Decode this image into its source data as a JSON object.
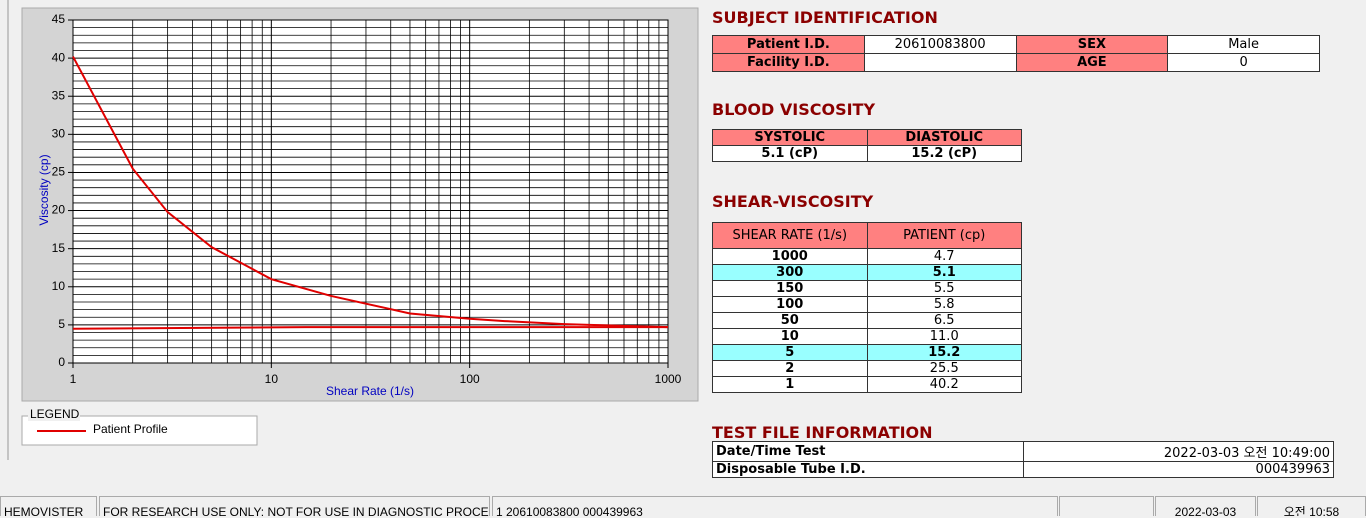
{
  "chart_data": {
    "type": "line",
    "xlabel": "Shear Rate (1/s)",
    "ylabel": "Viscosity (cp)",
    "xscale": "log",
    "xlim": [
      1,
      1000
    ],
    "ylim": [
      0,
      45
    ],
    "xticks": [
      1,
      10,
      100,
      1000
    ],
    "yticks": [
      0,
      5,
      10,
      15,
      20,
      25,
      30,
      35,
      40,
      45
    ],
    "xminorticks": [
      2,
      3,
      4,
      5,
      6,
      7,
      8,
      9,
      20,
      30,
      40,
      50,
      60,
      70,
      80,
      90,
      200,
      300,
      400,
      500,
      600,
      700,
      800,
      900
    ],
    "yminorticks": [
      1,
      2,
      3,
      4,
      6,
      7,
      8,
      9,
      11,
      12,
      13,
      14,
      16,
      17,
      18,
      19,
      21,
      22,
      23,
      24,
      26,
      27,
      28,
      29,
      31,
      32,
      33,
      34,
      36,
      37,
      38,
      39,
      41,
      42,
      43,
      44
    ],
    "grid": true,
    "legend_title": "LEGEND",
    "series": [
      {
        "name": "Patient Profile",
        "color": "#e00000",
        "x": [
          1,
          2,
          3,
          5,
          10,
          20,
          50,
          100,
          150,
          300,
          1000
        ],
        "values": [
          40.2,
          25.5,
          19.8,
          15.2,
          11.0,
          8.8,
          6.5,
          5.8,
          5.5,
          5.1,
          4.7
        ]
      },
      {
        "color": "#e00000",
        "x": [
          1,
          15,
          1000
        ],
        "values": [
          4.5,
          4.7,
          4.7
        ]
      }
    ]
  },
  "subject": {
    "title": "SUBJECT IDENTIFICATION",
    "patient_id_label": "Patient I.D.",
    "patient_id": "20610083800",
    "sex_label": "SEX",
    "sex": "Male",
    "facility_label": "Facility I.D.",
    "age_label": "AGE",
    "age": "0"
  },
  "blood": {
    "title": "BLOOD VISCOSITY",
    "headers": [
      "SYSTOLIC",
      "DIASTOLIC"
    ],
    "values": [
      "5.1 (cP)",
      "15.2 (cP)"
    ]
  },
  "shear": {
    "title": "SHEAR-VISCOSITY",
    "headers": [
      "SHEAR RATE (1/s)",
      "PATIENT (cp)"
    ],
    "rows": [
      [
        "1000",
        "4.7"
      ],
      [
        "300",
        "5.1"
      ],
      [
        "150",
        "5.5"
      ],
      [
        "100",
        "5.8"
      ],
      [
        "50",
        "6.5"
      ],
      [
        "10",
        "11.0"
      ],
      [
        "5",
        "15.2"
      ],
      [
        "2",
        "25.5"
      ],
      [
        "1",
        "40.2"
      ]
    ],
    "highlight_rows": [
      1,
      6
    ]
  },
  "test_file": {
    "title": "TEST FILE INFORMATION",
    "rows": [
      [
        "Date/Time Test",
        "2022-03-03   오전 10:49:00"
      ],
      [
        "Disposable Tube I.D.",
        "000439963"
      ]
    ]
  },
  "status_bar": [
    "HEMOVISTER",
    "FOR RESEARCH USE ONLY: NOT FOR USE IN DIAGNOSTIC PROCEDURES",
    "1  20610083800  000439963",
    "2022-03-03",
    "오전 10:58"
  ]
}
